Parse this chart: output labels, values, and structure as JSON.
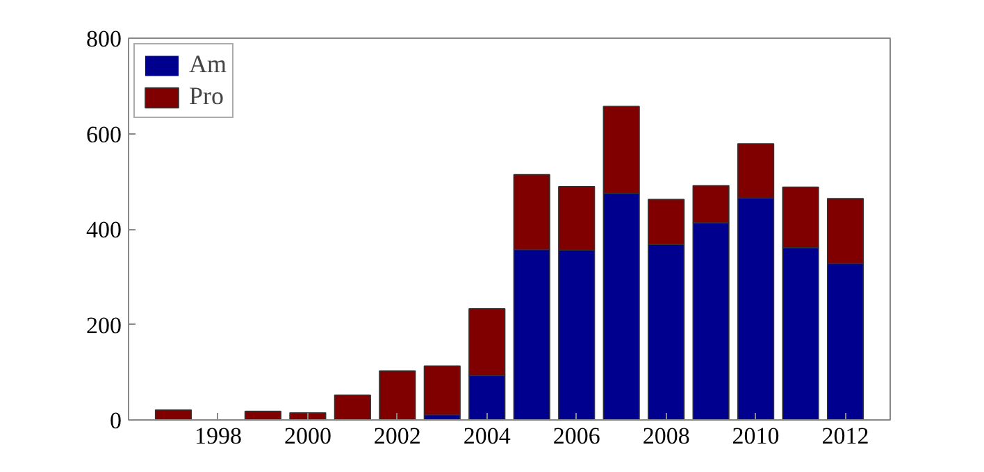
{
  "chart_data": {
    "type": "bar",
    "stacked": true,
    "x": [
      1997,
      1998,
      1999,
      2000,
      2001,
      2002,
      2003,
      2004,
      2005,
      2006,
      2007,
      2008,
      2009,
      2010,
      2011,
      2012
    ],
    "series": [
      {
        "name": "Am",
        "color": "#00008f",
        "values": [
          0,
          0,
          0,
          0,
          0,
          0,
          11,
          93,
          357,
          356,
          475,
          368,
          413,
          465,
          361,
          328
        ]
      },
      {
        "name": "Pro",
        "color": "#800000",
        "values": [
          21,
          0,
          18,
          15,
          52,
          103,
          102,
          140,
          157,
          133,
          182,
          94,
          78,
          114,
          127,
          136
        ]
      }
    ],
    "xlim": [
      1996,
      2013
    ],
    "xticks": [
      1998,
      2000,
      2002,
      2004,
      2006,
      2008,
      2010,
      2012
    ],
    "ylim": [
      0,
      800
    ],
    "yticks": [
      0,
      200,
      400,
      600,
      800
    ],
    "grid": false,
    "legend": "top left"
  }
}
